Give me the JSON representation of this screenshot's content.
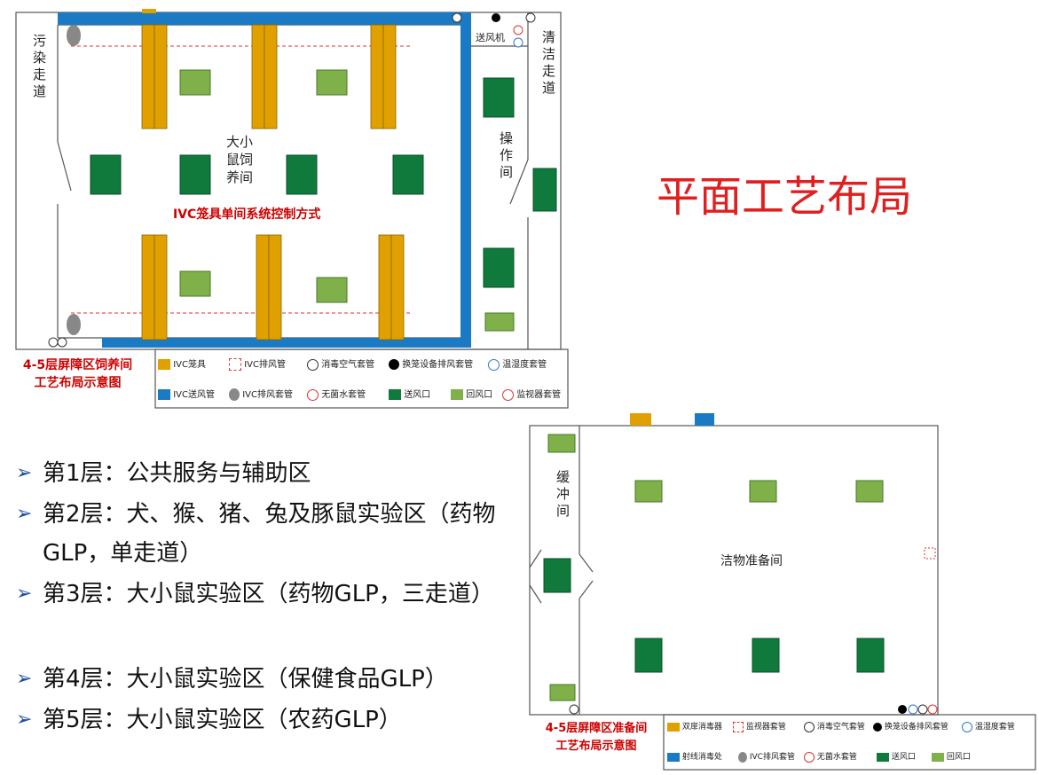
{
  "title": "平面工艺布局",
  "diagram1": {
    "rooms": {
      "dirty_corridor": "污染走道",
      "clean_corridor": "清洁走道",
      "fan": "送风机",
      "operation": "操作间",
      "housing": "大小鼠饲养间",
      "control": "IVC笼具单间系统控制方式"
    },
    "caption": [
      "4-5层屏障区饲养间",
      "工艺布局示意图"
    ],
    "legend": [
      "IVC笼具",
      "IVC排风管",
      "消毒空气套管",
      "换笼设备排风套管",
      "温湿度套管",
      "IVC送风管",
      "IVC排风套管",
      "无菌水套管",
      "送风口",
      "回风口",
      "监视器套管"
    ]
  },
  "bullets": [
    "第1层：公共服务与辅助区",
    "第2层：犬、猴、猪、兔及豚鼠实验区（药物GLP，单走道）",
    "第3层：大小鼠实验区（药物GLP，三走道）",
    "第4层：大小鼠实验区（保健食品GLP）",
    "第5层：大小鼠实验区（农药GLP）"
  ],
  "diagram2": {
    "rooms": {
      "buffer": "缓冲间",
      "prep": "洁物准备间"
    },
    "caption": [
      "4-5层屏障区准备间",
      "工艺布局示意图"
    ],
    "legend": [
      "双扉消毒器",
      "监视器套管",
      "消毒空气套管",
      "换笼设备排风套管",
      "温湿度套管",
      "射线消毒处",
      "IVC排风套管",
      "无菌水套管",
      "送风口",
      "回风口"
    ]
  }
}
